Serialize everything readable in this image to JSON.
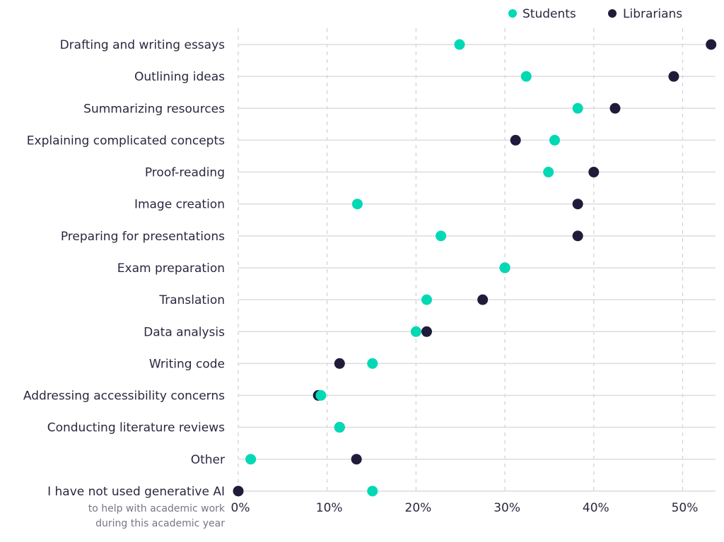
{
  "chart_data": {
    "type": "scatter",
    "title": "",
    "xlabel": "",
    "ylabel": "",
    "xlim": [
      0,
      53.5
    ],
    "x_ticks": [
      "0%",
      "10%",
      "20%",
      "30%",
      "40%",
      "50%"
    ],
    "x_tick_values": [
      0,
      10,
      20,
      30,
      40,
      50
    ],
    "grid": true,
    "legend_position": "top-right",
    "categories": [
      "Drafting and writing essays",
      "Outlining ideas",
      "Summarizing resources",
      "Explaining complicated concepts",
      "Proof-reading",
      "Image creation",
      "Preparing for presentations",
      "Exam preparation",
      "Translation",
      "Data analysis",
      "Writing code",
      "Addressing accessibility concerns",
      "Conducting literature reviews",
      "Other",
      "I have not used generative AI"
    ],
    "last_category_note": [
      "to help with academic work",
      "during this academic year"
    ],
    "series": [
      {
        "name": "Librarians",
        "color": "#1f1c3b",
        "values": [
          53.2,
          49.0,
          42.4,
          31.2,
          40.0,
          38.2,
          38.2,
          30.0,
          27.5,
          21.2,
          11.4,
          9.0,
          11.4,
          13.3,
          0.0
        ]
      },
      {
        "name": "Students",
        "color": "#00d9b4",
        "values": [
          24.9,
          32.4,
          38.2,
          35.6,
          34.9,
          13.4,
          22.8,
          30.0,
          21.2,
          20.0,
          15.1,
          9.3,
          11.4,
          1.4,
          15.1
        ]
      }
    ]
  }
}
